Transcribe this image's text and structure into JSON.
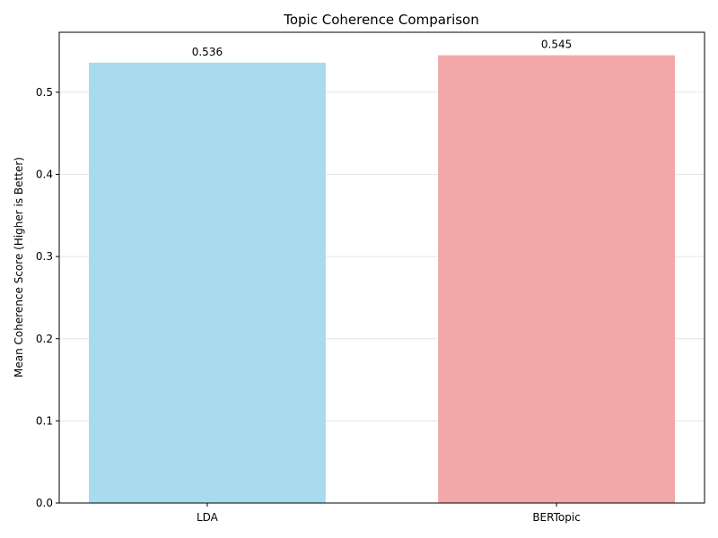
{
  "chart_data": {
    "type": "bar",
    "title": "Topic Coherence Comparison",
    "xlabel": "",
    "ylabel": "Mean Coherence Score (Higher is Better)",
    "categories": [
      "LDA",
      "BERTopic"
    ],
    "values": [
      0.536,
      0.545
    ],
    "data_labels": [
      "0.536",
      "0.545"
    ],
    "colors": [
      "#a8dbee",
      "#f2a7a8"
    ],
    "ylim": [
      0,
      0.573
    ],
    "yticks": [
      0.0,
      0.1,
      0.2,
      0.3,
      0.4,
      0.5
    ],
    "ytick_labels": [
      "0.0",
      "0.1",
      "0.2",
      "0.3",
      "0.4",
      "0.5"
    ],
    "grid": "y",
    "legend": "none"
  }
}
